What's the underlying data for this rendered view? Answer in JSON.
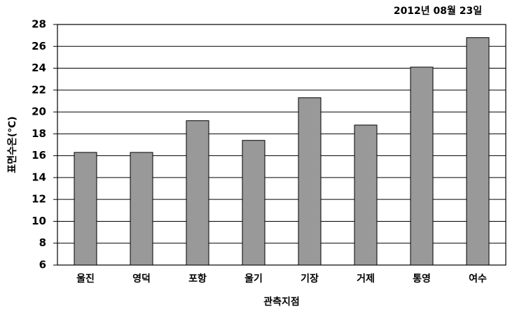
{
  "chart_data": {
    "type": "bar",
    "title": "2012년 08월 23일",
    "x_label": "관측지점",
    "y_label": "표면수온(℃)",
    "categories": [
      "울진",
      "영덕",
      "포항",
      "울기",
      "기장",
      "거제",
      "통영",
      "여수"
    ],
    "values": [
      16.3,
      16.3,
      19.2,
      17.4,
      21.3,
      18.8,
      24.1,
      26.8
    ],
    "color": "#999999",
    "ylim": [
      6,
      28
    ],
    "yticks": [
      6,
      8,
      10,
      12,
      14,
      16,
      18,
      20,
      22,
      24,
      26,
      28
    ],
    "grid": true
  }
}
